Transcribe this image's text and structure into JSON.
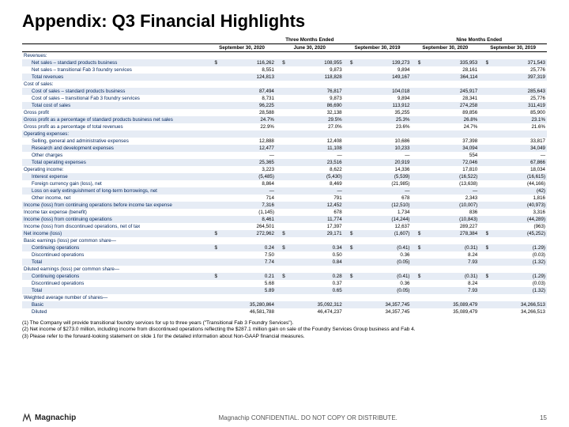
{
  "title": "Appendix: Q3 Financial Highlights",
  "periods": {
    "group1": "Three Months Ended",
    "group2": "Nine Months Ended",
    "cols": [
      "September 30, 2020",
      "June 30, 2020",
      "September 30, 2019",
      "September 30, 2020",
      "September 30, 2019"
    ]
  },
  "rows": [
    {
      "l": "Revenues:",
      "s": 0,
      "i": 0,
      "v": [
        "",
        "",
        "",
        "",
        ""
      ]
    },
    {
      "l": "Net sales – standard products business",
      "s": 1,
      "i": 1,
      "d": 1,
      "v": [
        "116,262",
        "108,955",
        "139,273",
        "335,953",
        "371,543"
      ]
    },
    {
      "l": "Net sales – transitional Fab 3 foundry services",
      "s": 0,
      "i": 1,
      "v": [
        "8,551",
        "9,873",
        "9,894",
        "28,161",
        "25,776"
      ]
    },
    {
      "l": "Total revenues",
      "s": 1,
      "i": 1,
      "v": [
        "124,813",
        "118,828",
        "149,167",
        "364,114",
        "397,319"
      ]
    },
    {
      "l": "Cost of sales:",
      "s": 0,
      "i": 0,
      "v": [
        "",
        "",
        "",
        "",
        ""
      ]
    },
    {
      "l": "Cost of sales – standard products business",
      "s": 1,
      "i": 1,
      "v": [
        "87,494",
        "76,817",
        "104,018",
        "245,917",
        "285,643"
      ]
    },
    {
      "l": "Cost of sales – transitional Fab 3 foundry services",
      "s": 0,
      "i": 1,
      "v": [
        "8,731",
        "9,873",
        "9,894",
        "28,341",
        "25,776"
      ]
    },
    {
      "l": "Total cost of sales",
      "s": 1,
      "i": 1,
      "v": [
        "96,225",
        "86,690",
        "113,912",
        "274,258",
        "311,419"
      ]
    },
    {
      "l": "Gross profit",
      "s": 0,
      "i": 0,
      "v": [
        "28,588",
        "32,138",
        "35,255",
        "89,856",
        "85,900"
      ]
    },
    {
      "l": "Gross profit as a percentage of standard products business net sales",
      "s": 1,
      "i": 0,
      "v": [
        "24.7%",
        "29.5%",
        "25.3%",
        "26.8%",
        "23.1%"
      ]
    },
    {
      "l": "Gross profit as a percentage of total revenues",
      "s": 0,
      "i": 0,
      "v": [
        "22.9%",
        "27.0%",
        "23.6%",
        "24.7%",
        "21.6%"
      ]
    },
    {
      "l": "Operating expenses:",
      "s": 1,
      "i": 0,
      "v": [
        "",
        "",
        "",
        "",
        ""
      ]
    },
    {
      "l": "Selling, general and administrative expenses",
      "s": 0,
      "i": 1,
      "v": [
        "12,888",
        "12,408",
        "10,686",
        "37,398",
        "33,817"
      ]
    },
    {
      "l": "Research and development expenses",
      "s": 1,
      "i": 1,
      "v": [
        "12,477",
        "11,108",
        "10,233",
        "34,094",
        "34,049"
      ]
    },
    {
      "l": "Other charges",
      "s": 0,
      "i": 1,
      "v": [
        "—",
        "—",
        "—",
        "554",
        "—"
      ]
    },
    {
      "l": "Total operating expenses",
      "s": 1,
      "i": 1,
      "v": [
        "25,365",
        "23,516",
        "20,919",
        "72,046",
        "67,866"
      ]
    },
    {
      "l": "Operating income:",
      "s": 0,
      "i": 0,
      "v": [
        "3,223",
        "8,622",
        "14,336",
        "17,810",
        "18,034"
      ]
    },
    {
      "l": "Interest expense",
      "s": 1,
      "i": 1,
      "v": [
        "(5,485)",
        "(5,430)",
        "(5,539)",
        "(16,522)",
        "(16,615)"
      ]
    },
    {
      "l": "Foreign currency gain (loss), net",
      "s": 0,
      "i": 1,
      "v": [
        "8,864",
        "8,469",
        "(21,985)",
        "(13,638)",
        "(44,166)"
      ]
    },
    {
      "l": "Loss on early extinguishment of long-term borrowings, net",
      "s": 1,
      "i": 1,
      "v": [
        "—",
        "—",
        "—",
        "—",
        "(42)"
      ]
    },
    {
      "l": "Other income, net",
      "s": 0,
      "i": 1,
      "v": [
        "714",
        "791",
        "678",
        "2,343",
        "1,816"
      ]
    },
    {
      "l": "Income (loss) from continuing operations before income tax expense",
      "s": 1,
      "i": 0,
      "v": [
        "7,316",
        "12,452",
        "(12,510)",
        "(10,007)",
        "(40,973)"
      ]
    },
    {
      "l": "Income tax expense (benefit)",
      "s": 0,
      "i": 0,
      "v": [
        "(1,145)",
        "678",
        "1,734",
        "836",
        "3,316"
      ]
    },
    {
      "l": "Income (loss) from continuing operations",
      "s": 1,
      "i": 0,
      "v": [
        "8,461",
        "11,774",
        "(14,244)",
        "(10,843)",
        "(44,289)"
      ]
    },
    {
      "l": "Income (loss) from discontinued operations, net of tax",
      "s": 0,
      "i": 0,
      "v": [
        "264,501",
        "17,397",
        "12,637",
        "289,227",
        "(963)"
      ]
    },
    {
      "l": "Net income (loss)",
      "s": 1,
      "i": 0,
      "d": 1,
      "v": [
        "272,962",
        "29,171",
        "(1,607)",
        "278,384",
        "(45,252)"
      ]
    },
    {
      "l": "Basic earnings (loss) per common share—",
      "s": 0,
      "i": 0,
      "v": [
        "",
        "",
        "",
        "",
        ""
      ]
    },
    {
      "l": "Continuing operations",
      "s": 1,
      "i": 1,
      "d": 1,
      "v": [
        "0.24",
        "0.34",
        "(0.41)",
        "(0.31)",
        "(1.29)"
      ]
    },
    {
      "l": "Discontinued operations",
      "s": 0,
      "i": 1,
      "v": [
        "7.50",
        "0.50",
        "0.36",
        "8.24",
        "(0.03)"
      ]
    },
    {
      "l": "Total",
      "s": 1,
      "i": 1,
      "v": [
        "7.74",
        "0.84",
        "(0.05)",
        "7.93",
        "(1.32)"
      ]
    },
    {
      "l": "Diluted earnings (loss) per common share—",
      "s": 0,
      "i": 0,
      "v": [
        "",
        "",
        "",
        "",
        ""
      ]
    },
    {
      "l": "Continuing operations",
      "s": 1,
      "i": 1,
      "d": 1,
      "v": [
        "0.21",
        "0.28",
        "(0.41)",
        "(0.31)",
        "(1.29)"
      ]
    },
    {
      "l": "Discontinued operations",
      "s": 0,
      "i": 1,
      "v": [
        "5.68",
        "0.37",
        "0.36",
        "8.24",
        "(0.03)"
      ]
    },
    {
      "l": "Total",
      "s": 1,
      "i": 1,
      "v": [
        "5.89",
        "0.65",
        "(0.05)",
        "7.93",
        "(1.32)"
      ]
    },
    {
      "l": "Weighted average number of shares—",
      "s": 0,
      "i": 0,
      "v": [
        "",
        "",
        "",
        "",
        ""
      ]
    },
    {
      "l": "Basic",
      "s": 1,
      "i": 1,
      "v": [
        "35,280,864",
        "35,092,312",
        "34,357,745",
        "35,089,479",
        "34,266,513"
      ]
    },
    {
      "l": "Diluted",
      "s": 0,
      "i": 1,
      "v": [
        "46,581,788",
        "46,474,237",
        "34,357,745",
        "35,089,479",
        "34,266,513"
      ]
    }
  ],
  "footnotes": [
    "(1) The Company will provide transitional foundry services for up to three years (\"Transitional Fab 3 Foundry Services\").",
    "(2) Net income of $273.0 million, including income from discontinued operations reflecting the $287.1 million gain on sale of the Foundry Services Group business and Fab 4.",
    "(3) Please refer to the forward-looking statement on slide 1 for the detailed information about Non-GAAP financial measures."
  ],
  "footer": {
    "logo": "Magnachip",
    "disclaimer": "Magnachip CONFIDENTIAL. DO NOT COPY OR DISTRIBUTE.",
    "page": "15"
  }
}
